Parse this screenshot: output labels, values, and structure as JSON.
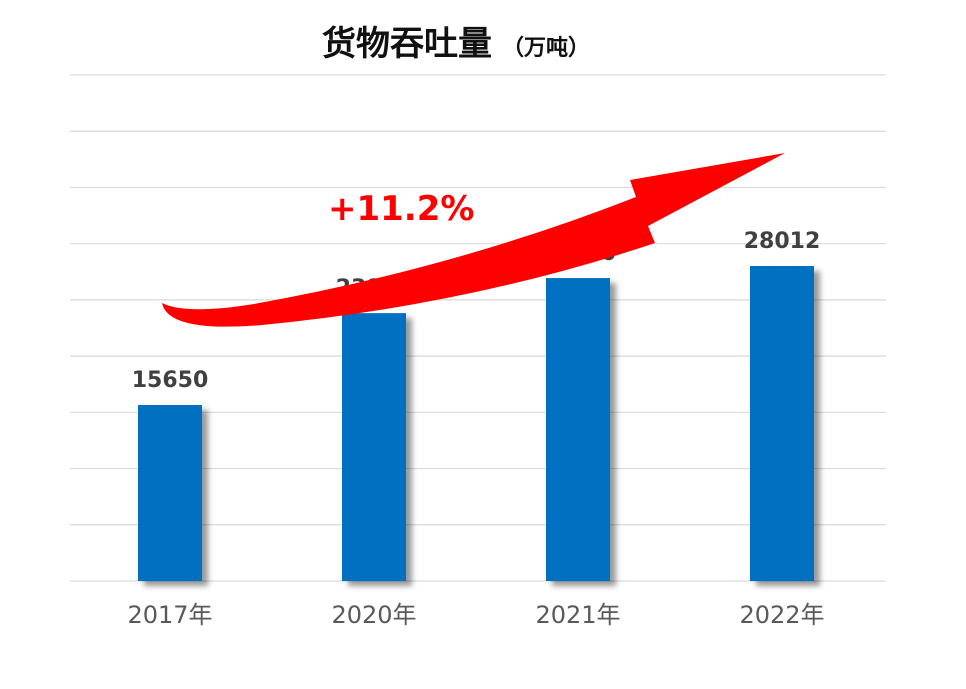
{
  "chart_data": {
    "type": "bar",
    "title": "货物吞吐量",
    "unit": "（万吨）",
    "categories": [
      "2017年",
      "2020年",
      "2021年",
      "2022年"
    ],
    "values": [
      15650,
      23821,
      26940,
      28012
    ],
    "data_labels": [
      "15650",
      "23821",
      "26940",
      "28012"
    ],
    "ylim": [
      0,
      45000
    ],
    "y_gridline_step": 5000,
    "grid": true,
    "annotations": [
      {
        "type": "growth-arrow",
        "text": "+11.2%"
      }
    ],
    "colors": {
      "bar": "#0070c0",
      "arrow": "#ff0000",
      "growth_text": "#ff0000",
      "grid": "#d9d9d9",
      "label": "#404040",
      "axis_label": "#595959"
    }
  }
}
